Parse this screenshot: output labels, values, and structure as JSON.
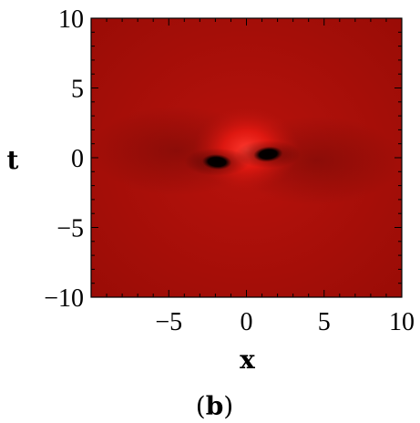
{
  "chart_data": {
    "type": "heatmap",
    "title": "",
    "xlabel": "x",
    "ylabel": "t",
    "xlim": [
      -10,
      10
    ],
    "ylim": [
      -10,
      10
    ],
    "xticks": [
      -5,
      0,
      5,
      10
    ],
    "xtick_labels": [
      "−5",
      "0",
      "5",
      "10"
    ],
    "yticks": [
      10,
      5,
      0,
      -5,
      -10
    ],
    "ytick_labels": [
      "10",
      "5",
      "0",
      "−5",
      "−10"
    ],
    "colors": {
      "background": "#b8120c",
      "peak": "#ff2020",
      "trough": "#000000",
      "edge": "#8c0a05"
    },
    "features": [
      {
        "kind": "peak",
        "x": 0.0,
        "t": 0.6,
        "label": "bright lump"
      },
      {
        "kind": "trough",
        "x": -1.9,
        "t": -0.3,
        "label": "dark lobe"
      },
      {
        "kind": "trough",
        "x": 1.4,
        "t": 0.25,
        "label": "dark lobe"
      }
    ]
  },
  "caption": {
    "open": "(",
    "letter": "b",
    "close": ")"
  }
}
